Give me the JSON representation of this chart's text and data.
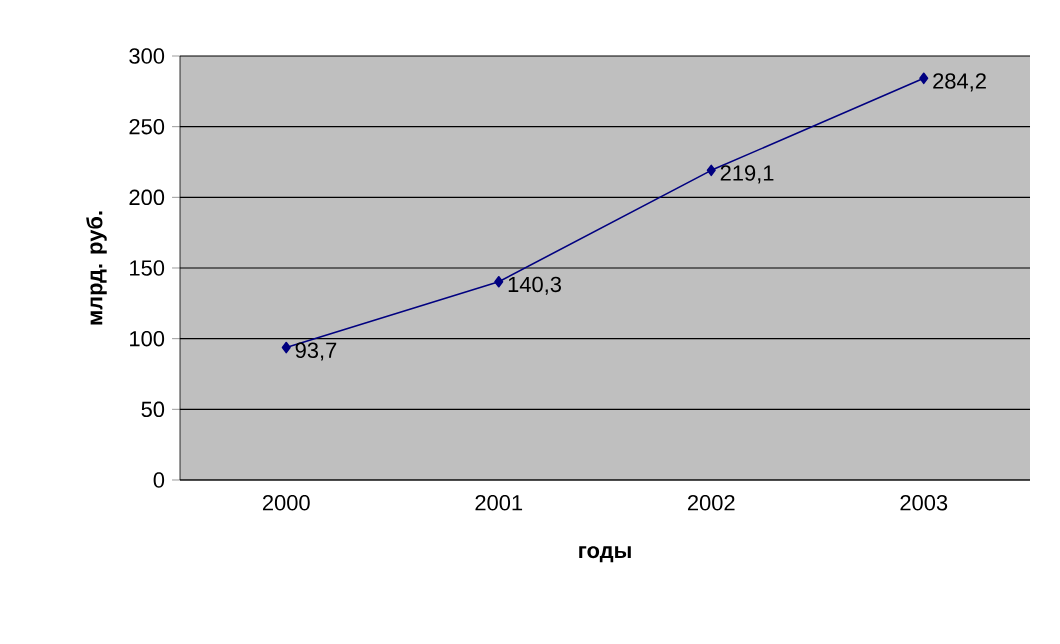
{
  "chart_data": {
    "type": "line",
    "xlabel": "годы",
    "ylabel": "млрд. руб.",
    "categories": [
      "2000",
      "2001",
      "2002",
      "2003"
    ],
    "series": [
      {
        "color": "#000080",
        "values": [
          93.7,
          140.3,
          219.1,
          284.2
        ],
        "value_labels": [
          "93,7",
          "140,3",
          "219,1",
          "284,2"
        ]
      }
    ],
    "ylim": [
      0,
      300
    ],
    "yticks": [
      0,
      50,
      100,
      150,
      200,
      250,
      300
    ],
    "grid": "y",
    "marker": "diamond",
    "line_style": "solid"
  }
}
